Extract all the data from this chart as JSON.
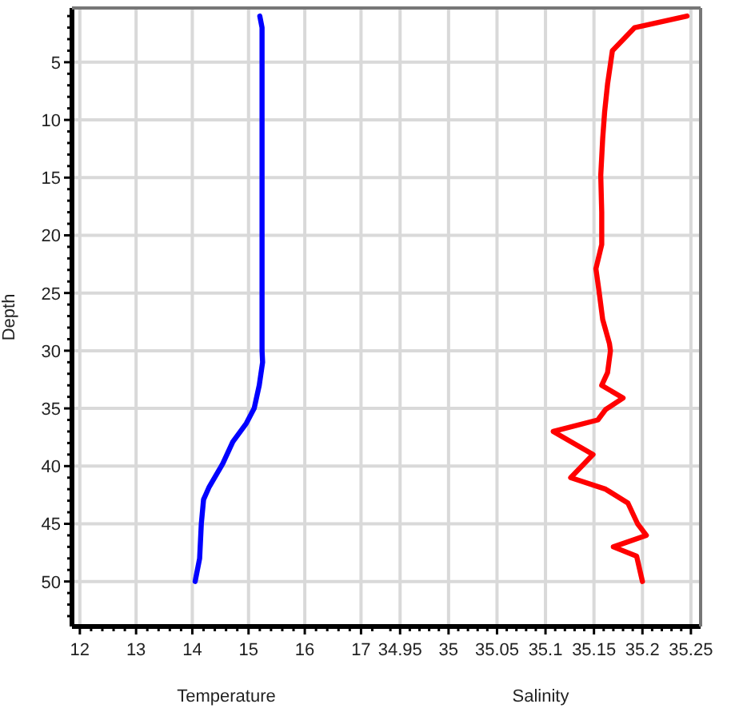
{
  "chart_data": [
    {
      "type": "line",
      "xlabel": "Temperature",
      "ylabel": "Depth",
      "grid": true,
      "line_style": "solid",
      "marker": "none",
      "xlim": [
        11.86,
        17.35
      ],
      "ylim": [
        53.9,
        0.3
      ],
      "xticks": [
        12,
        {
          "value": 12.2,
          "label": null
        },
        {
          "value": 12.4,
          "label": null
        },
        {
          "value": 12.6,
          "label": null
        },
        {
          "value": 12.8,
          "label": null
        },
        13,
        {
          "value": 13.2,
          "label": null
        },
        {
          "value": 13.4,
          "label": null
        },
        {
          "value": 13.6,
          "label": null
        },
        {
          "value": 13.8,
          "label": null
        },
        14,
        {
          "value": 14.2,
          "label": null
        },
        {
          "value": 14.4,
          "label": null
        },
        {
          "value": 14.6,
          "label": null
        },
        {
          "value": 14.8,
          "label": null
        },
        15,
        {
          "value": 15.2,
          "label": null
        },
        {
          "value": 15.4,
          "label": null
        },
        {
          "value": 15.6,
          "label": null
        },
        {
          "value": 15.8,
          "label": null
        },
        16,
        {
          "value": 16.2,
          "label": null
        },
        {
          "value": 16.4,
          "label": null
        },
        {
          "value": 16.6,
          "label": null
        },
        {
          "value": 16.8,
          "label": null
        },
        17,
        {
          "value": 17.2,
          "label": null
        }
      ],
      "yticks": [
        {
          "value": 1,
          "label": null
        },
        {
          "value": 2,
          "label": null
        },
        {
          "value": 3,
          "label": null
        },
        {
          "value": 4,
          "label": null
        },
        5,
        {
          "value": 6,
          "label": null
        },
        {
          "value": 7,
          "label": null
        },
        {
          "value": 8,
          "label": null
        },
        {
          "value": 9,
          "label": null
        },
        10,
        {
          "value": 11,
          "label": null
        },
        {
          "value": 12,
          "label": null
        },
        {
          "value": 13,
          "label": null
        },
        {
          "value": 14,
          "label": null
        },
        15,
        {
          "value": 16,
          "label": null
        },
        {
          "value": 17,
          "label": null
        },
        {
          "value": 18,
          "label": null
        },
        {
          "value": 19,
          "label": null
        },
        20,
        {
          "value": 21,
          "label": null
        },
        {
          "value": 22,
          "label": null
        },
        {
          "value": 23,
          "label": null
        },
        {
          "value": 24,
          "label": null
        },
        25,
        {
          "value": 26,
          "label": null
        },
        {
          "value": 27,
          "label": null
        },
        {
          "value": 28,
          "label": null
        },
        {
          "value": 29,
          "label": null
        },
        30,
        {
          "value": 31,
          "label": null
        },
        {
          "value": 32,
          "label": null
        },
        {
          "value": 33,
          "label": null
        },
        {
          "value": 34,
          "label": null
        },
        35,
        {
          "value": 36,
          "label": null
        },
        {
          "value": 37,
          "label": null
        },
        {
          "value": 38,
          "label": null
        },
        {
          "value": 39,
          "label": null
        },
        40,
        {
          "value": 41,
          "label": null
        },
        {
          "value": 42,
          "label": null
        },
        {
          "value": 43,
          "label": null
        },
        {
          "value": 44,
          "label": null
        },
        45,
        {
          "value": 46,
          "label": null
        },
        {
          "value": 47,
          "label": null
        },
        {
          "value": 48,
          "label": null
        },
        {
          "value": 49,
          "label": null
        },
        50,
        {
          "value": 51,
          "label": null
        },
        {
          "value": 52,
          "label": null
        },
        {
          "value": 53,
          "label": null
        }
      ],
      "series": [
        {
          "color": "#0000ff",
          "x": [
            15.2,
            15.24,
            15.24,
            15.24,
            15.25,
            15.19,
            15.1,
            14.96,
            14.72,
            14.54,
            14.3,
            14.2,
            14.16,
            14.13,
            14.05
          ],
          "values": [
            1,
            2,
            10,
            30,
            31,
            33,
            35,
            36.3,
            37.9,
            39.8,
            41.8,
            42.9,
            45,
            48,
            50
          ]
        }
      ]
    },
    {
      "type": "line",
      "xlabel": "Salinity",
      "grid": true,
      "tick_labels": "x",
      "line_style": "solid",
      "marker": "none",
      "xlim": [
        34.93,
        35.26
      ],
      "ylim": [
        53.9,
        0.3
      ],
      "xticks": [
        {
          "value": 34.94,
          "label": null
        },
        34.95,
        {
          "value": 34.96,
          "label": null
        },
        {
          "value": 34.97,
          "label": null
        },
        {
          "value": 34.98,
          "label": null
        },
        {
          "value": 34.99,
          "label": null
        },
        35,
        {
          "value": 35.01,
          "label": null
        },
        {
          "value": 35.02,
          "label": null
        },
        {
          "value": 35.03,
          "label": null
        },
        {
          "value": 35.04,
          "label": null
        },
        35.05,
        {
          "value": 35.06,
          "label": null
        },
        {
          "value": 35.07,
          "label": null
        },
        {
          "value": 35.08,
          "label": null
        },
        {
          "value": 35.09,
          "label": null
        },
        35.1,
        {
          "value": 35.11,
          "label": null
        },
        {
          "value": 35.12,
          "label": null
        },
        {
          "value": 35.13,
          "label": null
        },
        {
          "value": 35.14,
          "label": null
        },
        35.15,
        {
          "value": 35.16,
          "label": null
        },
        {
          "value": 35.17,
          "label": null
        },
        {
          "value": 35.18,
          "label": null
        },
        {
          "value": 35.19,
          "label": null
        },
        35.2,
        {
          "value": 35.21,
          "label": null
        },
        {
          "value": 35.22,
          "label": null
        },
        {
          "value": 35.23,
          "label": null
        },
        {
          "value": 35.24,
          "label": null
        },
        35.25
      ],
      "yticks": [
        5,
        10,
        15,
        20,
        25,
        30,
        35,
        40,
        45,
        50
      ],
      "series": [
        {
          "color": "#ff0000",
          "x": [
            35.246,
            35.192,
            35.169,
            35.164,
            35.161,
            35.159,
            35.157,
            35.158,
            35.158,
            35.152,
            35.155,
            35.159,
            35.166,
            35.167,
            35.164,
            35.158,
            35.18,
            35.162,
            35.154,
            35.108,
            35.149,
            35.126,
            35.162,
            35.185,
            35.195,
            35.204,
            35.17,
            35.194,
            35.2
          ],
          "values": [
            1,
            2,
            4,
            6.9,
            9.3,
            11.6,
            14.8,
            18,
            20.8,
            22.9,
            24.7,
            27.3,
            29.4,
            30,
            31.9,
            33,
            34.1,
            35.1,
            36,
            37,
            39,
            41,
            42,
            43.2,
            45,
            46,
            47,
            47.8,
            50
          ]
        }
      ]
    }
  ]
}
